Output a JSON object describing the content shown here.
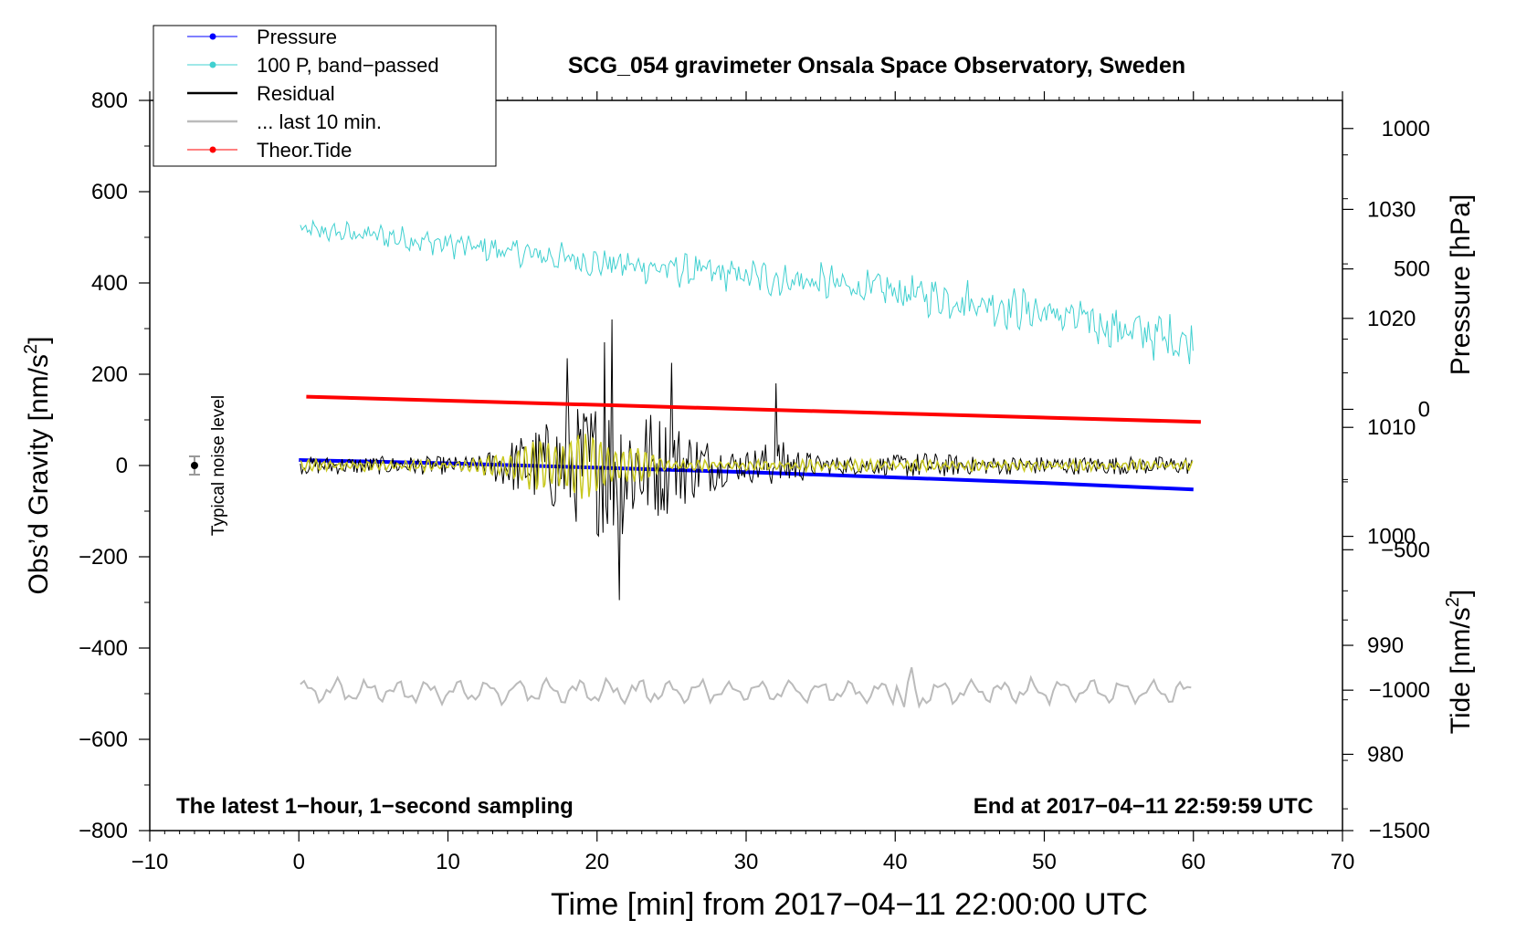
{
  "chart_data": {
    "type": "line",
    "title": "SCG_054 gravimeter Onsala Space Observatory, Sweden",
    "xlabel": "Time [min] from 2017−04−11 22:00:00 UTC",
    "ylabel": "Obs’d Gravity [nm/s",
    "ylabel_sup": "2",
    "ylabel_close": "]",
    "xlim": [
      -10,
      70
    ],
    "ylim": [
      -800,
      800
    ],
    "x_ticks": [
      -10,
      0,
      10,
      20,
      30,
      40,
      50,
      60,
      70
    ],
    "x_tick_labels": [
      "−10",
      "0",
      "10",
      "20",
      "30",
      "40",
      "50",
      "60",
      "70"
    ],
    "y_ticks": [
      -800,
      -600,
      -400,
      -200,
      0,
      200,
      400,
      600,
      800
    ],
    "y_tick_labels": [
      "−800",
      "−600",
      "−400",
      "−200",
      "0",
      "200",
      "400",
      "600",
      "800"
    ],
    "pressure_axis": {
      "label": "Pressure [hPa]",
      "range": [
        973,
        1040
      ],
      "ticks": [
        980,
        990,
        1000,
        1010,
        1020,
        1030
      ],
      "tick_labels": [
        "980",
        "990",
        "1000",
        "1010",
        "1020",
        "1030"
      ]
    },
    "tide_axis": {
      "label": "Tide [nm/s",
      "label_sup": "2",
      "label_close": "]",
      "range": [
        -1500,
        1100
      ],
      "ticks": [
        -1500,
        -1000,
        -500,
        0,
        500,
        1000
      ],
      "tick_labels": [
        "−1500",
        "−1000",
        "−500",
        "0",
        "500",
        "1000"
      ]
    },
    "series": [
      {
        "name": "Pressure",
        "color": "#0000ff",
        "unit": "hPa",
        "x": [
          0,
          10,
          20,
          30,
          40,
          50,
          60
        ],
        "values": [
          1007.0,
          1006.7,
          1006.3,
          1005.9,
          1005.4,
          1004.9,
          1004.3
        ]
      },
      {
        "name": "100 P, band−passed",
        "color": "#40d0d0",
        "unit": "nm/s2",
        "x": [
          0,
          5,
          10,
          15,
          20,
          25,
          30,
          35,
          40,
          45,
          50,
          55,
          60
        ],
        "values": [
          515,
          505,
          485,
          465,
          445,
          430,
          415,
          400,
          380,
          360,
          335,
          300,
          270
        ]
      },
      {
        "name": "Residual",
        "color": "#000000",
        "unit": "nm/s2",
        "peak_x": [
          18,
          20.5,
          21,
          21.5,
          25,
          32
        ],
        "peak_values": [
          235,
          270,
          320,
          -295,
          225,
          180
        ]
      },
      {
        "name": "... last 10 min.",
        "color": "#bbbbbb",
        "unit": "nm/s2",
        "x": [
          0,
          60
        ],
        "values": [
          -495,
          -495
        ]
      },
      {
        "name": "Theor.Tide",
        "color": "#ff0000",
        "unit": "nm/s2",
        "x": [
          0,
          10,
          20,
          30,
          40,
          50,
          60
        ],
        "values": [
          45,
          30,
          15,
          0,
          -15,
          -30,
          -45
        ]
      }
    ],
    "overlay_series": {
      "name": "yellow band-passed residual",
      "color": "#c8c820"
    },
    "noise_marker": {
      "x": -7,
      "y": 0,
      "label": "Typical noise level"
    },
    "legend_position": "top-left",
    "grid": false
  },
  "footer": {
    "left": "The latest 1−hour, 1−second sampling",
    "right": "End at 2017−04−11 22:59:59 UTC"
  }
}
